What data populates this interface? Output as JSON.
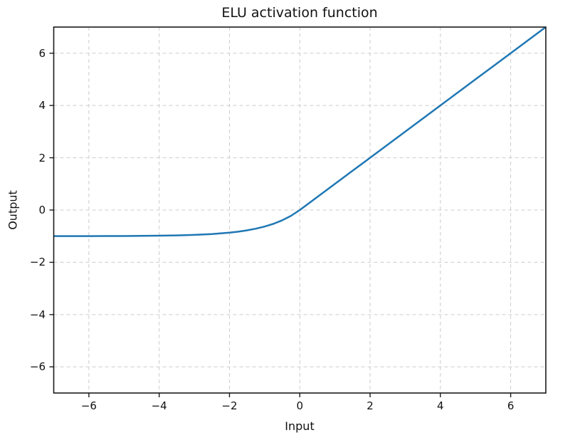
{
  "colors": {
    "background": "#ffffff",
    "line": "#1f77b4",
    "grid": "#cccccc",
    "spine": "#1a1a1a",
    "text": "#111111"
  },
  "chart_data": {
    "type": "line",
    "title": "ELU activation function",
    "xlabel": "Input",
    "ylabel": "Output",
    "xlim": [
      -7,
      7
    ],
    "ylim": [
      -7,
      7
    ],
    "grid": true,
    "grid_style": "dashed",
    "legend": false,
    "xtick_values": [
      -6,
      -4,
      -2,
      0,
      2,
      4,
      6
    ],
    "xtick_labels": [
      "−6",
      "−4",
      "−2",
      "0",
      "2",
      "4",
      "6"
    ],
    "ytick_values": [
      -6,
      -4,
      -2,
      0,
      2,
      4,
      6
    ],
    "ytick_labels": [
      "−6",
      "−4",
      "−2",
      "0",
      "2",
      "4",
      "6"
    ],
    "series": [
      {
        "name": "ELU",
        "color": "#1f77b4",
        "line_width": 2.5,
        "x": [
          -7,
          -6.5,
          -6,
          -5.5,
          -5,
          -4.5,
          -4,
          -3.5,
          -3,
          -2.5,
          -2,
          -1.75,
          -1.5,
          -1.25,
          -1,
          -0.75,
          -0.5,
          -0.25,
          0,
          0.5,
          1,
          1.5,
          2,
          2.5,
          3,
          3.5,
          4,
          4.5,
          5,
          5.5,
          6,
          6.5,
          7
        ],
        "y": [
          -0.9991,
          -0.9985,
          -0.9975,
          -0.9959,
          -0.9933,
          -0.9889,
          -0.9817,
          -0.9698,
          -0.9502,
          -0.9179,
          -0.8647,
          -0.8262,
          -0.7769,
          -0.7135,
          -0.6321,
          -0.5276,
          -0.3935,
          -0.2212,
          0,
          0.5,
          1,
          1.5,
          2,
          2.5,
          3,
          3.5,
          4,
          4.5,
          5,
          5.5,
          6,
          6.5,
          7
        ]
      }
    ]
  }
}
